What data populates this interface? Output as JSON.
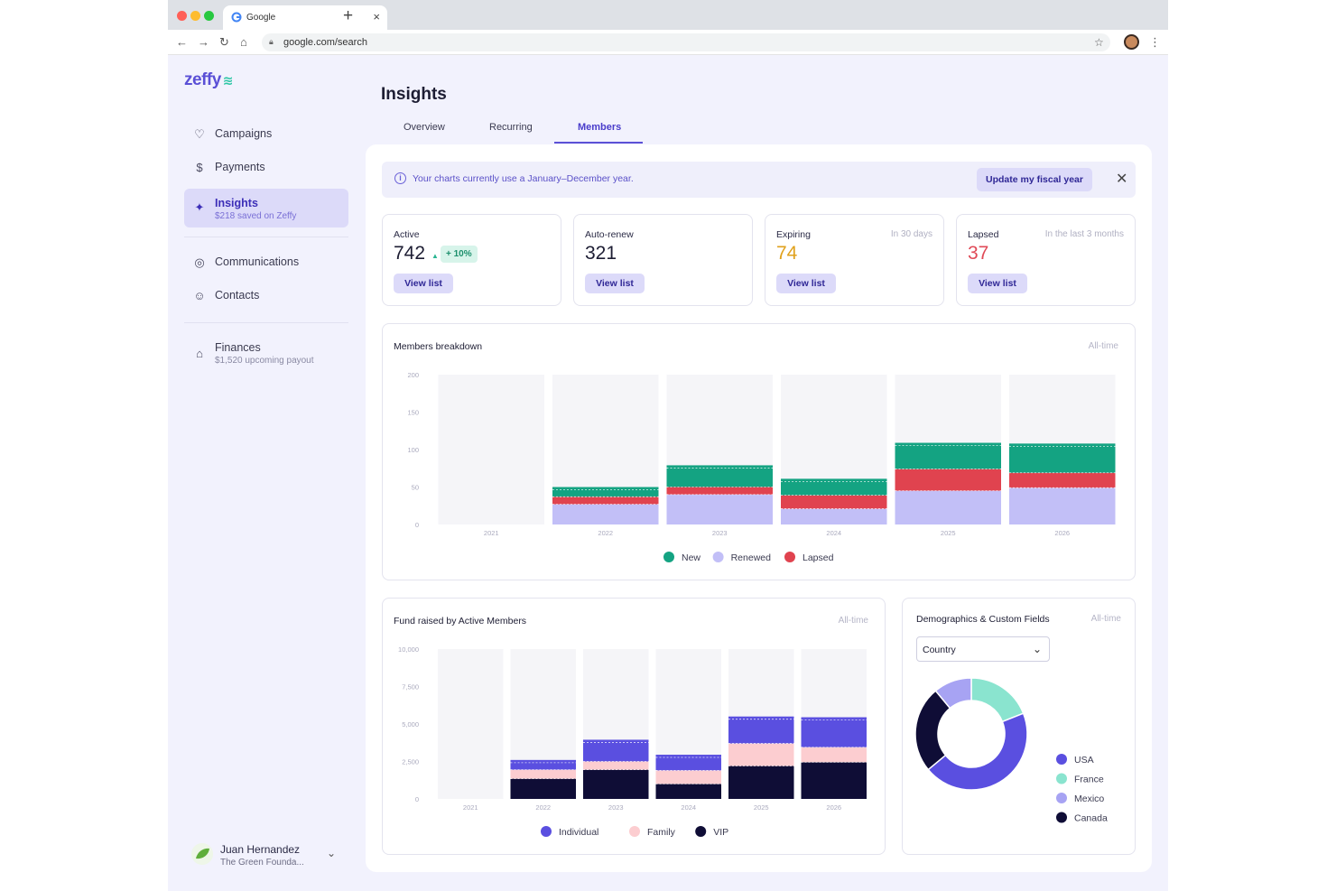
{
  "browser": {
    "tab_title": "Google",
    "url": "google.com/search"
  },
  "sidebar": {
    "logo": "zeffy",
    "items": [
      {
        "label": "Campaigns",
        "icon": "heart-icon"
      },
      {
        "label": "Payments",
        "icon": "dollar-circle-icon"
      },
      {
        "label": "Insights",
        "sub": "$218 saved on Zeffy",
        "icon": "sparkle-icon",
        "active": true
      },
      {
        "label": "Communications",
        "icon": "chat-icon"
      },
      {
        "label": "Contacts",
        "icon": "contacts-icon"
      },
      {
        "label": "Finances",
        "sub": "$1,520 upcoming payout",
        "icon": "bank-icon"
      }
    ],
    "user": {
      "name": "Juan Hernandez",
      "org": "The Green Founda..."
    }
  },
  "page": {
    "title": "Insights",
    "tabs": [
      "Overview",
      "Recurring",
      "Members"
    ],
    "active_tab": "Members"
  },
  "banner": {
    "message": "Your charts currently use a January–December year.",
    "button": "Update my fiscal year"
  },
  "stats": [
    {
      "label": "Active",
      "value": "742",
      "delta": "+ 10%",
      "hint": "",
      "color": "#1d1d33",
      "button": "View list"
    },
    {
      "label": "Auto-renew",
      "value": "321",
      "hint": "",
      "color": "#1d1d33",
      "button": "View list"
    },
    {
      "label": "Expiring",
      "value": "74",
      "hint": "In 30 days",
      "color": "#e0a11c",
      "button": "View list"
    },
    {
      "label": "Lapsed",
      "value": "37",
      "hint": "In the last 3 months",
      "color": "#e04a57",
      "button": "View list"
    }
  ],
  "members_chart": {
    "title": "Members breakdown",
    "timeframe": "All-time"
  },
  "fund_chart": {
    "title": "Fund raised by Active Members",
    "timeframe": "All-time"
  },
  "demo_chart": {
    "title": "Demographics & Custom Fields",
    "timeframe": "All-time",
    "select_value": "Country"
  },
  "colors": {
    "new": "#14a382",
    "renewed": "#c2bff7",
    "lapsed": "#e0434f",
    "individual": "#5a4fe0",
    "family": "#fccdd0",
    "vip": "#0f0d36",
    "usa": "#5a4fe0",
    "france": "#8ae4cf",
    "mexico": "#a7a3f3",
    "canada": "#0f0d36"
  },
  "chart_data": [
    {
      "type": "bar",
      "stacked": true,
      "title": "Members breakdown",
      "categories": [
        "2021",
        "2022",
        "2023",
        "2024",
        "2025",
        "2026"
      ],
      "ylim": [
        0,
        200
      ],
      "yticks": [
        0,
        50,
        100,
        150,
        200
      ],
      "series": [
        {
          "name": "Renewed",
          "values": [
            0,
            27,
            40,
            21,
            45,
            49
          ]
        },
        {
          "name": "Lapsed",
          "values": [
            0,
            10,
            10,
            18,
            29,
            20
          ]
        },
        {
          "name": "New",
          "values": [
            0,
            13,
            29,
            22,
            35,
            39
          ]
        }
      ],
      "legend": "bottom"
    },
    {
      "type": "bar",
      "stacked": true,
      "title": "Fund raised by Active Members",
      "categories": [
        "2021",
        "2022",
        "2023",
        "2024",
        "2025",
        "2026"
      ],
      "ylim": [
        0,
        10000
      ],
      "yticks": [
        0,
        2500,
        5000,
        7500,
        10000
      ],
      "ytick_labels": [
        "0",
        "2,500",
        "5,000",
        "7,500",
        "10,000"
      ],
      "series": [
        {
          "name": "VIP",
          "values": [
            0,
            1350,
            1950,
            1000,
            2200,
            2450
          ]
        },
        {
          "name": "Family",
          "values": [
            0,
            600,
            550,
            900,
            1500,
            1000
          ]
        },
        {
          "name": "Individual",
          "values": [
            0,
            650,
            1450,
            1050,
            1800,
            2000
          ]
        }
      ],
      "legend": "bottom"
    },
    {
      "type": "pie",
      "donut": true,
      "title": "Demographics & Custom Fields",
      "labels": [
        "USA",
        "France",
        "Mexico",
        "Canada"
      ],
      "values": [
        45,
        19,
        11,
        25
      ]
    }
  ]
}
